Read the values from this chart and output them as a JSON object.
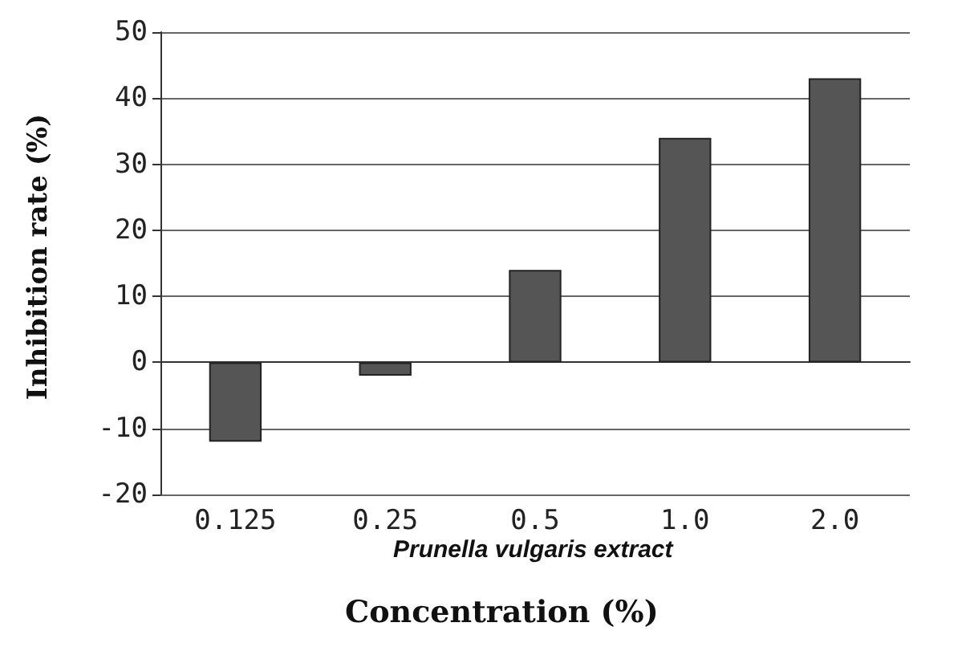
{
  "chart_data": {
    "type": "bar",
    "categories": [
      "0.125",
      "0.25",
      "0.5",
      "1.0",
      "2.0"
    ],
    "values": [
      -12,
      -2,
      14,
      34,
      43
    ],
    "color": "#555555",
    "ylim": [
      -20,
      50
    ],
    "yticks": [
      -20,
      -10,
      0,
      10,
      20,
      30,
      40,
      50
    ],
    "grid": "y",
    "ylabel": "Inhibition rate (%)",
    "xlabel": "Concentration (%)",
    "annotations": [
      "Prunella vulgaris extract"
    ]
  }
}
